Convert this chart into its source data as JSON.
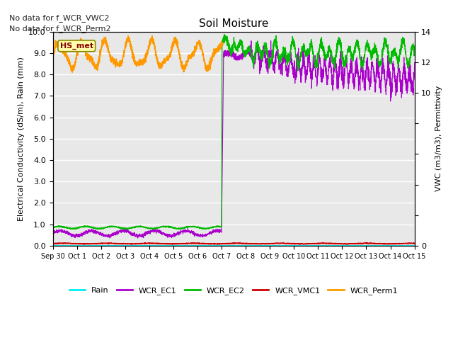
{
  "title": "Soil Moisture",
  "ylabel_left": "Electrical Conductivity (dS/m), Rain (mm)",
  "ylabel_right": "VWC (m3/m3), Permittivity",
  "text_no_data": [
    "No data for f_WCR_VWC2",
    "No data for f_WCR_Perm2"
  ],
  "hs_met_label": "HS_met",
  "xlim_days": [
    0,
    15
  ],
  "ylim_left": [
    0.0,
    10.0
  ],
  "ylim_right": [
    0,
    14
  ],
  "xtick_labels": [
    "Sep 30",
    "Oct 1",
    "Oct 2",
    "Oct 3",
    "Oct 4",
    "Oct 5",
    "Oct 6",
    "Oct 7",
    "Oct 8",
    "Oct 9",
    "Oct 10",
    "Oct 11",
    "Oct 12",
    "Oct 13",
    "Oct 14",
    "Oct 15"
  ],
  "colors": {
    "Rain": "#00eeee",
    "WCR_EC1": "#aa00cc",
    "WCR_EC2": "#00bb00",
    "WCR_VMC1": "#cc0000",
    "WCR_Perm1": "#ff9900"
  },
  "background_color": "#e8e8e8",
  "grid_color": "#ffffff"
}
